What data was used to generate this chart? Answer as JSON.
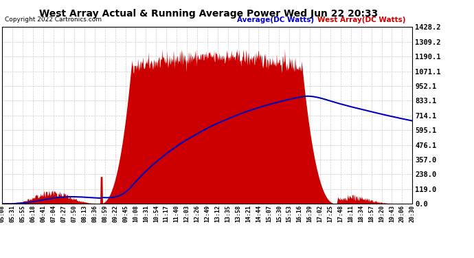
{
  "title": "West Array Actual & Running Average Power Wed Jun 22 20:33",
  "copyright": "Copyright 2022 Cartronics.com",
  "legend_avg": "Average(DC Watts)",
  "legend_west": "West Array(DC Watts)",
  "yticks": [
    0.0,
    119.0,
    238.0,
    357.0,
    476.1,
    595.1,
    714.1,
    833.1,
    952.1,
    1071.1,
    1190.1,
    1309.2,
    1428.2
  ],
  "ymax": 1428.2,
  "ymin": 0.0,
  "bg_color": "#ffffff",
  "plot_bg_color": "#ffffff",
  "grid_color": "#cccccc",
  "fill_color": "#cc0000",
  "avg_line_color": "#0000bb",
  "title_color": "#000000",
  "copyright_color": "#000000",
  "avg_label_color": "#0000cc",
  "west_label_color": "#cc0000",
  "x_time_labels": [
    "05:08",
    "05:31",
    "05:55",
    "06:18",
    "06:41",
    "07:04",
    "07:27",
    "07:50",
    "08:13",
    "08:36",
    "08:59",
    "09:22",
    "09:45",
    "10:08",
    "10:31",
    "10:54",
    "11:17",
    "11:40",
    "12:03",
    "12:26",
    "12:49",
    "13:12",
    "13:35",
    "13:58",
    "14:21",
    "14:44",
    "15:07",
    "15:30",
    "15:53",
    "16:16",
    "16:39",
    "17:02",
    "17:25",
    "17:48",
    "18:11",
    "18:34",
    "18:57",
    "19:20",
    "19:43",
    "20:06",
    "20:30"
  ]
}
